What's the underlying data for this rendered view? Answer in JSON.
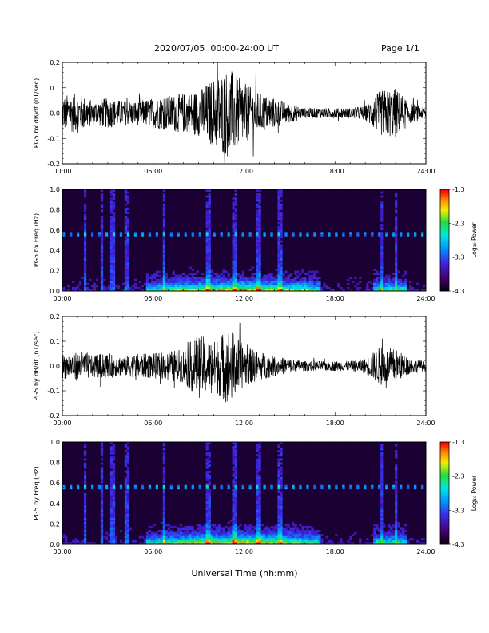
{
  "header": {
    "title": "2020/07/05  00:00-24:00 UT",
    "page": "Page 1/1"
  },
  "x_axis_title": "Universal Time (hh:mm)",
  "x_ticks": [
    "00:00",
    "06:00",
    "12:00",
    "18:00",
    "24:00"
  ],
  "colors": {
    "trace": "#000000",
    "spectrogram_background": "#1a0033"
  },
  "chart_data": [
    {
      "type": "line",
      "ylabel": "PG5 bx dB/dt (nT/sec)",
      "ylim": [
        -0.2,
        0.2
      ],
      "y_ticks": [
        "0.2",
        "0.1",
        "0.0",
        "-0.1",
        "-0.2"
      ],
      "xlim_hours": [
        0,
        24
      ],
      "envelope": {
        "x_hours": [
          0,
          1,
          2,
          3,
          4,
          5,
          6,
          7,
          8,
          9,
          10,
          11,
          12,
          13,
          14,
          15,
          16,
          17,
          18,
          19,
          20,
          21,
          22,
          23,
          24
        ],
        "amplitude": [
          0.07,
          0.08,
          0.05,
          0.06,
          0.05,
          0.05,
          0.06,
          0.07,
          0.08,
          0.09,
          0.14,
          0.18,
          0.12,
          0.08,
          0.06,
          0.04,
          0.02,
          0.02,
          0.02,
          0.02,
          0.03,
          0.09,
          0.1,
          0.04,
          0.02
        ]
      }
    },
    {
      "type": "heatmap",
      "ylabel": "PG5 bx Freq (Hz)",
      "ylim": [
        0.0,
        1.0
      ],
      "y_ticks": [
        "1.0",
        "0.8",
        "0.6",
        "0.4",
        "0.2",
        "0.0"
      ],
      "xlim_hours": [
        0,
        24
      ],
      "colorbar": {
        "label": "Log₁₀ Power",
        "range": [
          -4.3,
          -1.3
        ],
        "ticks": [
          "-1.3",
          "-2.3",
          "-3.3",
          "-4.3"
        ]
      },
      "features": {
        "dotted_band_hz": 0.56,
        "low_freq_enhancement_hours": [
          6,
          17
        ]
      }
    },
    {
      "type": "line",
      "ylabel": "PG5 by dB/dt (nT/sec)",
      "ylim": [
        -0.2,
        0.2
      ],
      "y_ticks": [
        "0.2",
        "0.1",
        "0.0",
        "-0.1",
        "-0.2"
      ],
      "xlim_hours": [
        0,
        24
      ],
      "envelope": {
        "x_hours": [
          0,
          1,
          2,
          3,
          4,
          5,
          6,
          7,
          8,
          9,
          10,
          11,
          12,
          13,
          14,
          15,
          16,
          17,
          18,
          19,
          20,
          21,
          22,
          23,
          24
        ],
        "amplitude": [
          0.05,
          0.06,
          0.05,
          0.05,
          0.04,
          0.05,
          0.05,
          0.06,
          0.07,
          0.13,
          0.1,
          0.16,
          0.08,
          0.06,
          0.04,
          0.03,
          0.02,
          0.02,
          0.02,
          0.02,
          0.03,
          0.08,
          0.07,
          0.03,
          0.02
        ]
      }
    },
    {
      "type": "heatmap",
      "ylabel": "PG5 by Freq (Hz)",
      "ylim": [
        0.0,
        1.0
      ],
      "y_ticks": [
        "1.0",
        "0.8",
        "0.6",
        "0.4",
        "0.2",
        "0.0"
      ],
      "xlim_hours": [
        0,
        24
      ],
      "colorbar": {
        "label": "Log₁₀ Power",
        "range": [
          -4.3,
          -1.3
        ],
        "ticks": [
          "-1.3",
          "-2.3",
          "-3.3",
          "-4.3"
        ]
      },
      "features": {
        "dotted_band_hz": 0.56,
        "low_freq_enhancement_hours": [
          6,
          17
        ]
      }
    }
  ]
}
